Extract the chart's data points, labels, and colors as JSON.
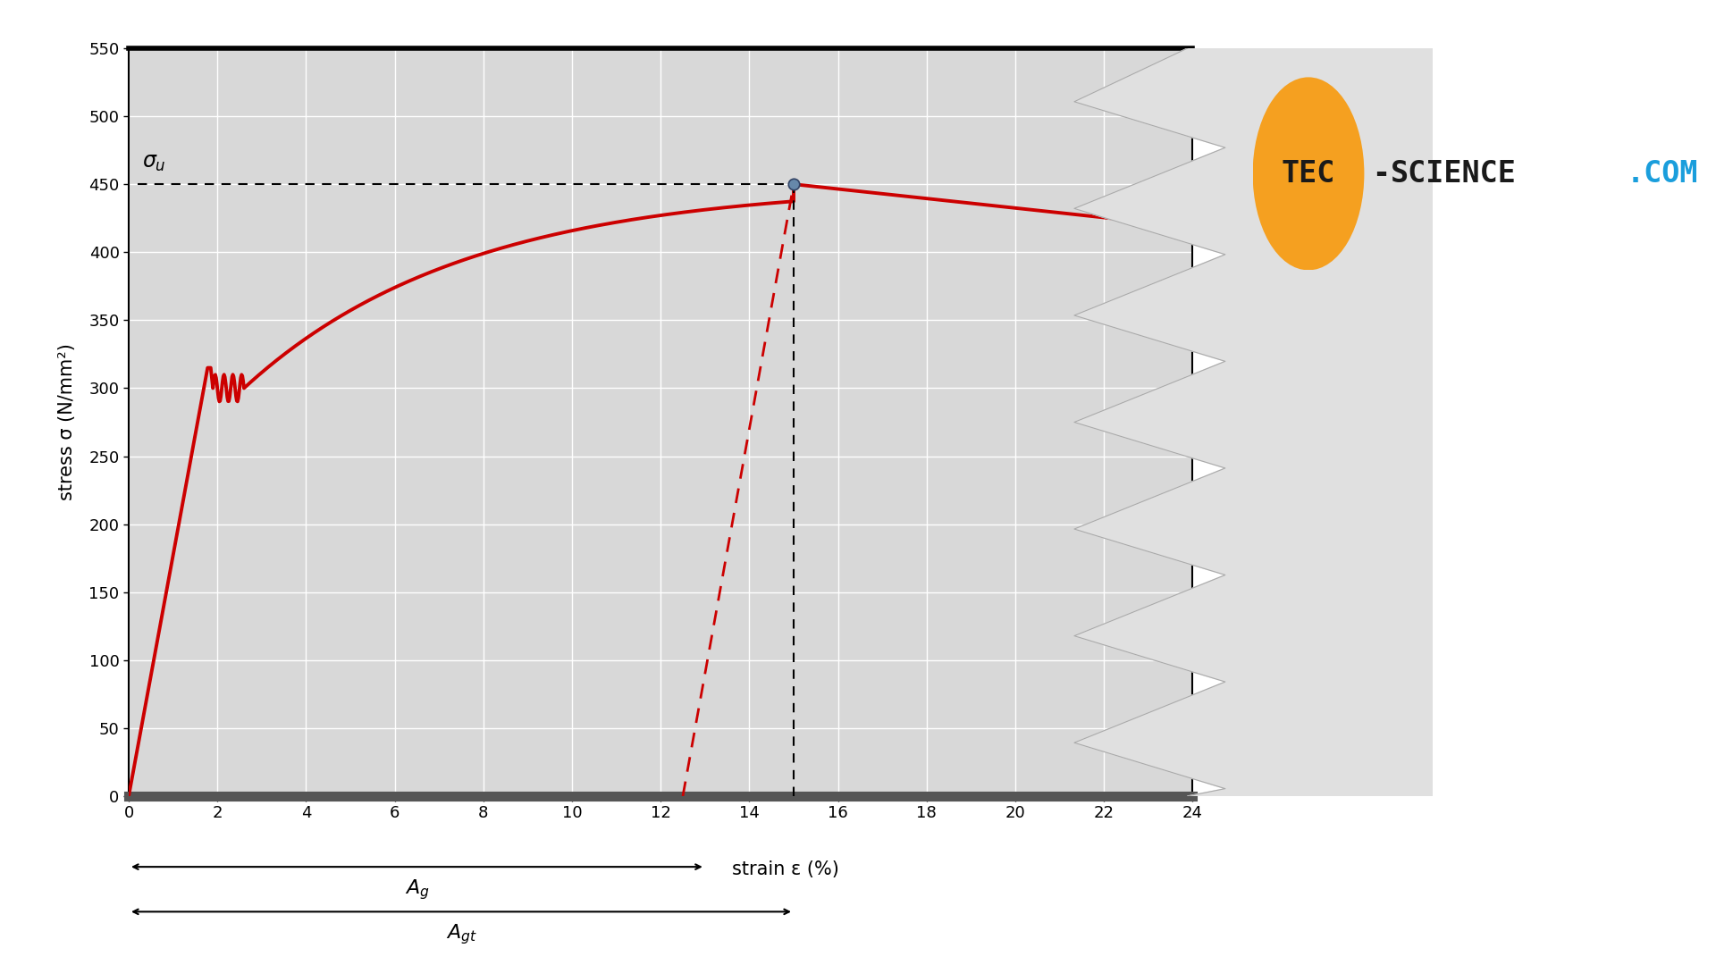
{
  "xlabel": "strain ε (%)",
  "ylabel": "stress σ (N/mm²)",
  "xlim": [
    0,
    24
  ],
  "ylim": [
    0,
    550
  ],
  "xticks": [
    0,
    2,
    4,
    6,
    8,
    10,
    12,
    14,
    16,
    18,
    20,
    22,
    24
  ],
  "yticks": [
    0,
    50,
    100,
    150,
    200,
    250,
    300,
    350,
    400,
    450,
    500,
    550
  ],
  "uts_stress": 450,
  "uts_strain": 15,
  "Ag_strain": 13.0,
  "Agt_strain": 15.0,
  "elastic_unload_start_x": 12.5,
  "curve_color": "#cc0000",
  "dot_color": "#6688aa",
  "plot_bg_color": "#d8d8d8",
  "grid_color": "#ffffff",
  "logo_orange": "#f5a020",
  "logo_blue": "#1a9edc",
  "logo_black": "#1a1a1a",
  "jagged_fill_color": "#e0e0e0",
  "bottom_bar_color": "#888888",
  "sigma_u_label": "σ_u",
  "Ag_label": "A_g",
  "Agt_label": "A_{gt}"
}
